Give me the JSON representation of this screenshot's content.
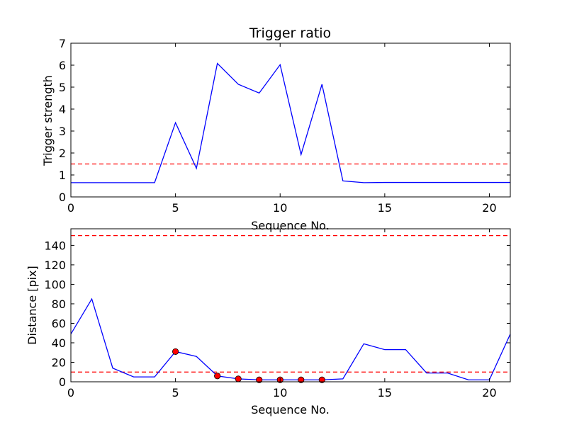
{
  "chart_data": [
    {
      "type": "line",
      "title": "Trigger ratio",
      "xlabel": "Sequence No.",
      "ylabel": "Trigger strength",
      "xlim": [
        0,
        21
      ],
      "ylim": [
        0,
        7
      ],
      "xticks": [
        0,
        5,
        10,
        15,
        20
      ],
      "yticks": [
        0,
        1,
        2,
        3,
        4,
        5,
        6,
        7
      ],
      "grid": false,
      "series": [
        {
          "color": "#0000ff",
          "style": "solid",
          "x": [
            0,
            1,
            2,
            3,
            4,
            5,
            6,
            7,
            8,
            9,
            10,
            11,
            12,
            13,
            14,
            15,
            16,
            17,
            18,
            19,
            20,
            21
          ],
          "y": [
            0.65,
            0.65,
            0.65,
            0.65,
            0.65,
            3.38,
            1.3,
            6.08,
            5.13,
            4.73,
            6.02,
            1.93,
            5.13,
            0.73,
            0.65,
            0.66,
            0.66,
            0.66,
            0.66,
            0.66,
            0.66,
            0.66
          ]
        }
      ],
      "threshold_lines": [
        {
          "y": 1.5,
          "color": "#ff0000",
          "style": "dashed"
        }
      ]
    },
    {
      "type": "line",
      "title": "",
      "xlabel": "Sequence No.",
      "ylabel": "Distance [pix]",
      "xlim": [
        0,
        21
      ],
      "ylim": [
        0,
        157
      ],
      "xticks": [
        0,
        5,
        10,
        15,
        20
      ],
      "yticks": [
        0,
        20,
        40,
        60,
        80,
        100,
        120,
        140
      ],
      "grid": false,
      "series": [
        {
          "color": "#0000ff",
          "style": "solid",
          "x": [
            0,
            1,
            2,
            3,
            4,
            5,
            6,
            7,
            8,
            9,
            10,
            11,
            12,
            13,
            14,
            15,
            16,
            17,
            18,
            19,
            20,
            21
          ],
          "y": [
            49,
            85,
            14,
            5,
            5,
            31,
            26,
            6,
            3,
            2,
            2,
            2,
            2,
            3,
            39,
            33,
            33,
            9,
            9,
            2,
            2,
            49
          ]
        }
      ],
      "markers": {
        "color": "#ff0000",
        "x": [
          5,
          7,
          8,
          9,
          10,
          11,
          12
        ],
        "y": [
          31,
          6,
          3,
          2,
          2,
          2,
          2
        ]
      },
      "threshold_lines": [
        {
          "y": 10,
          "color": "#ff0000",
          "style": "dashed"
        },
        {
          "y": 150,
          "color": "#ff0000",
          "style": "dashed"
        }
      ]
    }
  ]
}
